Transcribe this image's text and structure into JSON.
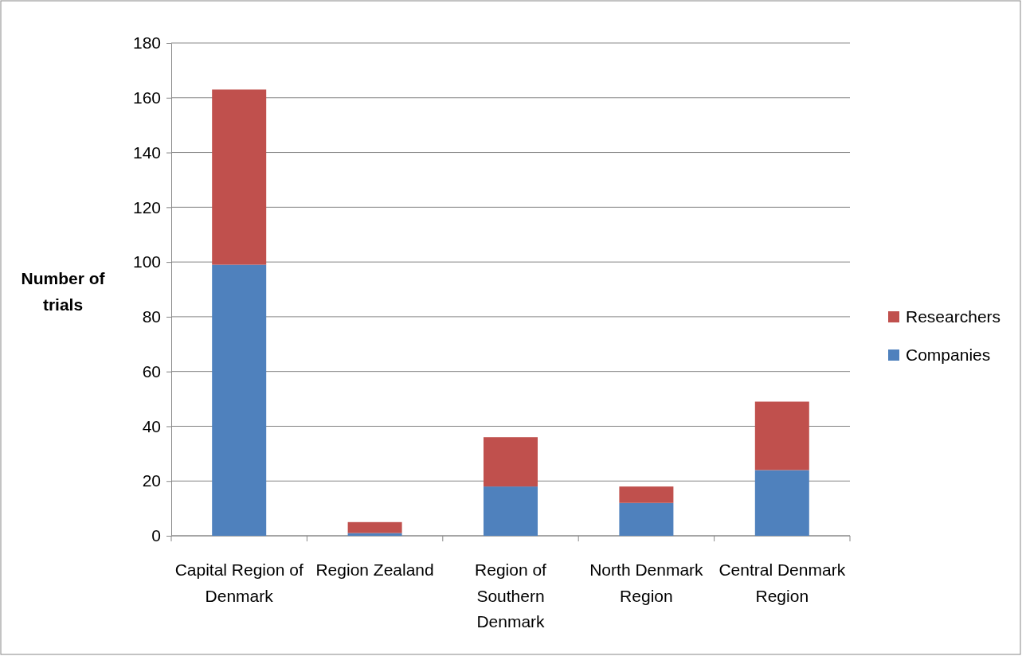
{
  "chart_data": {
    "type": "bar",
    "stacked": true,
    "ylabel": "Number of trials",
    "categories": [
      "Capital Region of Denmark",
      "Region Zealand",
      "Region of Southern Denmark",
      "North Denmark Region",
      "Central Denmark Region"
    ],
    "series": [
      {
        "name": "Companies",
        "color": "#4f81bd",
        "values": [
          99,
          1,
          18,
          12,
          24
        ]
      },
      {
        "name": "Researchers",
        "color": "#c0504d",
        "values": [
          64,
          4,
          18,
          6,
          25
        ]
      }
    ],
    "ylim": [
      0,
      180
    ],
    "yticks": [
      0,
      20,
      40,
      60,
      80,
      100,
      120,
      140,
      160,
      180
    ],
    "grid": "y",
    "legend": "right"
  }
}
